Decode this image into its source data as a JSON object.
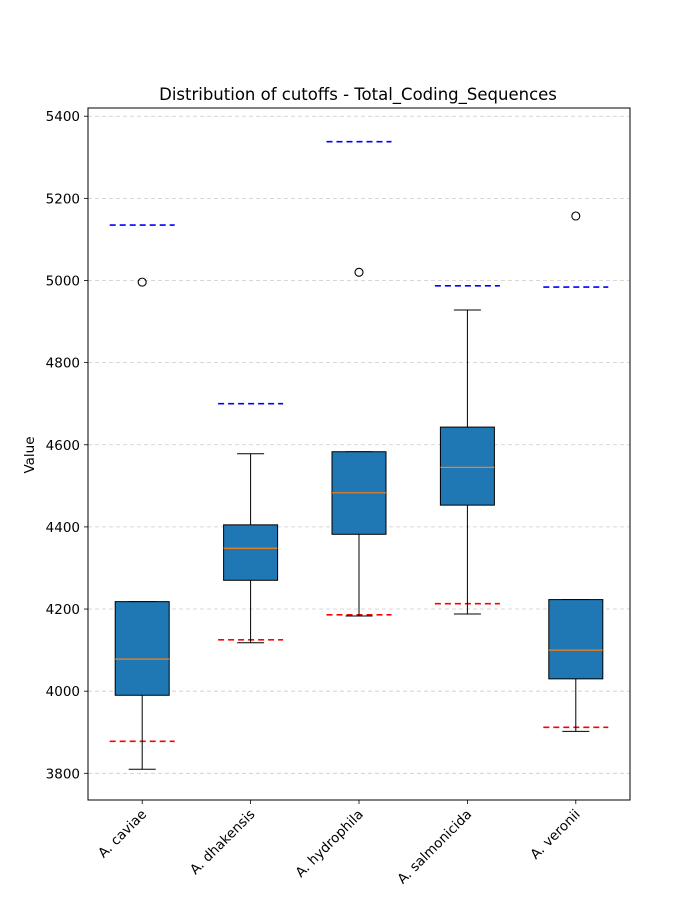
{
  "chart_data": {
    "type": "box",
    "title": "Distribution of cutoffs - Total_Coding_Sequences",
    "xlabel": "",
    "ylabel": "Value",
    "ylim": [
      3735,
      5420
    ],
    "yticks": [
      3800,
      4000,
      4200,
      4400,
      4600,
      4800,
      5000,
      5200,
      5400
    ],
    "grid": true,
    "colors": {
      "box_fill": "#1f77b4",
      "median": "#ff7f0e",
      "upper_cutoff": "#0000ff",
      "lower_cutoff": "#ff0000",
      "grid": "#cccccc"
    },
    "categories": [
      "A. caviae",
      "A. dhakensis",
      "A. hydrophila",
      "A. salmonicida",
      "A. veronii"
    ],
    "boxes": [
      {
        "whisker_low": 3810,
        "q1": 3990,
        "median": 4078,
        "q3": 4218,
        "whisker_high": 4218,
        "outliers": [
          4996
        ],
        "lower_cutoff": 3878,
        "upper_cutoff": 5135
      },
      {
        "whisker_low": 4118,
        "q1": 4270,
        "median": 4348,
        "q3": 4405,
        "whisker_high": 4578,
        "outliers": [],
        "lower_cutoff": 4125,
        "upper_cutoff": 4700
      },
      {
        "whisker_low": 4183,
        "q1": 4382,
        "median": 4483,
        "q3": 4583,
        "whisker_high": 4583,
        "outliers": [
          5020
        ],
        "lower_cutoff": 4186,
        "upper_cutoff": 5338
      },
      {
        "whisker_low": 4188,
        "q1": 4453,
        "median": 4545,
        "q3": 4643,
        "whisker_high": 4928,
        "outliers": [],
        "lower_cutoff": 4213,
        "upper_cutoff": 4987
      },
      {
        "whisker_low": 3902,
        "q1": 4030,
        "median": 4100,
        "q3": 4223,
        "whisker_high": 4223,
        "outliers": [
          5157
        ],
        "lower_cutoff": 3912,
        "upper_cutoff": 4984
      }
    ]
  }
}
